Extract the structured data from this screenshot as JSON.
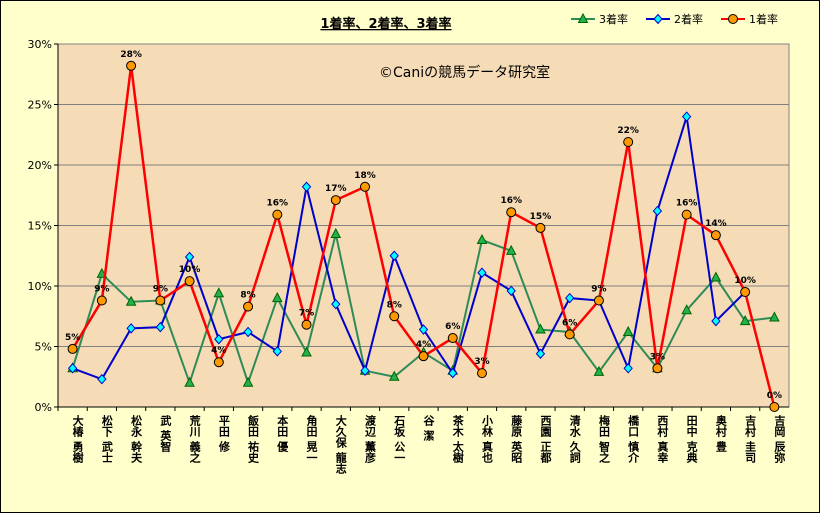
{
  "chart_data": {
    "type": "line",
    "title": "1着率、2着率、3着率",
    "watermark": "©Caniの競馬データ研究室",
    "xlabel": "",
    "ylabel": "",
    "ylim": [
      0,
      30
    ],
    "yticks": [
      "0%",
      "5%",
      "10%",
      "15%",
      "20%",
      "25%",
      "30%"
    ],
    "grid": true,
    "legend_position": "top-right",
    "categories": [
      "大椿 勇樹",
      "松下 武士",
      "松永 幹夫",
      "武 英智",
      "荒川 義之",
      "平田 修",
      "飯田 祐史",
      "本田 優",
      "角田 晃一",
      "大久保 龍志",
      "渡辺 薫彦",
      "石坂 公一",
      "谷 潔",
      "茶木 太樹",
      "小林 真也",
      "藤原 英昭",
      "西園 正都",
      "清水 久詞",
      "梅田 智之",
      "橋口 慎介",
      "西村 真幸",
      "田中 克典",
      "奥村 豊",
      "吉村 圭司",
      "吉岡 辰弥"
    ],
    "series": [
      {
        "name": "3着率",
        "color": "#2e8b57",
        "marker": "triangle",
        "marker_color": "#22b14c",
        "values": [
          3.2,
          11.0,
          8.7,
          8.8,
          2.0,
          9.4,
          2.0,
          9.0,
          4.5,
          14.3,
          3.0,
          2.5,
          4.5,
          3.0,
          13.8,
          12.9,
          6.4,
          6.2,
          2.9,
          6.2,
          3.2,
          8.0,
          10.7,
          7.1,
          7.4
        ]
      },
      {
        "name": "2着率",
        "color": "#0000cc",
        "marker": "diamond",
        "marker_color": "#00ffff",
        "values": [
          3.2,
          2.3,
          6.5,
          6.6,
          12.4,
          5.6,
          6.2,
          4.6,
          18.2,
          8.5,
          3.0,
          12.5,
          6.4,
          2.8,
          11.1,
          9.6,
          4.4,
          9.0,
          8.8,
          3.2,
          16.2,
          24.0,
          7.1,
          9.5,
          null
        ]
      },
      {
        "name": "1着率",
        "color": "#ff0000",
        "marker": "circle",
        "marker_color": "#ff9900",
        "values": [
          4.8,
          8.8,
          28.2,
          8.8,
          10.4,
          3.7,
          8.3,
          15.9,
          6.8,
          17.1,
          18.2,
          7.5,
          4.2,
          5.7,
          2.8,
          16.1,
          14.8,
          6.0,
          8.8,
          21.9,
          3.2,
          15.9,
          14.2,
          9.5,
          0.0
        ]
      }
    ],
    "data_labels": [
      "5%",
      "9%",
      "28%",
      "9%",
      "10%",
      "4%",
      "8%",
      "16%",
      "7%",
      "17%",
      "18%",
      "8%",
      "4%",
      "6%",
      "3%",
      "16%",
      "15%",
      "6%",
      "9%",
      "22%",
      "3%",
      "16%",
      "14%",
      "10%",
      "0%"
    ]
  }
}
